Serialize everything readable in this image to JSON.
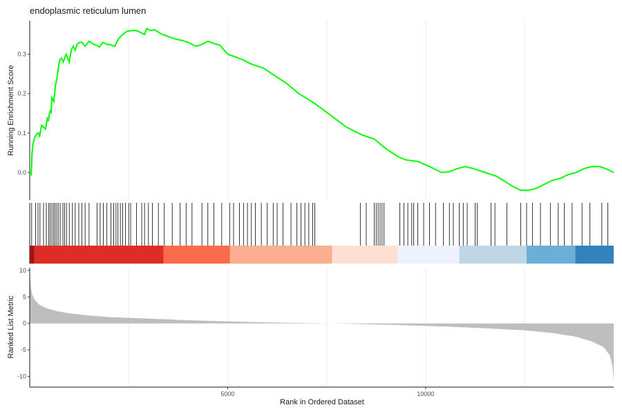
{
  "chart_data": {
    "type": "line",
    "title": "endoplasmic reticulum lumen",
    "x_label": "Rank in Ordered Dataset",
    "x_ticks": [
      5000,
      10000
    ],
    "x_range": [
      1,
      14750
    ],
    "grid": "vertical-only",
    "panels": {
      "running_enrichment": {
        "ylabel": "Running Enrichment Score",
        "y_ticks": [
          0.0,
          0.1,
          0.2,
          0.3
        ],
        "y_ticks_text": [
          "0.0",
          "0.1",
          "0.2",
          "0.3"
        ],
        "ylim": [
          -0.07,
          0.385
        ],
        "line_color": "#00ff00",
        "points": [
          [
            1,
            0.0
          ],
          [
            40,
            -0.005
          ],
          [
            60,
            0.05
          ],
          [
            80,
            0.07
          ],
          [
            130,
            0.09
          ],
          [
            200,
            0.1
          ],
          [
            230,
            0.1
          ],
          [
            250,
            0.09
          ],
          [
            300,
            0.12
          ],
          [
            400,
            0.11
          ],
          [
            450,
            0.14
          ],
          [
            470,
            0.13
          ],
          [
            500,
            0.15
          ],
          [
            530,
            0.16
          ],
          [
            540,
            0.15
          ],
          [
            560,
            0.19
          ],
          [
            610,
            0.18
          ],
          [
            650,
            0.22
          ],
          [
            690,
            0.24
          ],
          [
            730,
            0.27
          ],
          [
            760,
            0.285
          ],
          [
            800,
            0.29
          ],
          [
            850,
            0.28
          ],
          [
            880,
            0.29
          ],
          [
            920,
            0.3
          ],
          [
            960,
            0.29
          ],
          [
            1000,
            0.28
          ],
          [
            1050,
            0.31
          ],
          [
            1100,
            0.32
          ],
          [
            1150,
            0.31
          ],
          [
            1200,
            0.325
          ],
          [
            1260,
            0.33
          ],
          [
            1320,
            0.33
          ],
          [
            1400,
            0.32
          ],
          [
            1500,
            0.333
          ],
          [
            1600,
            0.326
          ],
          [
            1700,
            0.322
          ],
          [
            1760,
            0.318
          ],
          [
            1850,
            0.33
          ],
          [
            1950,
            0.325
          ],
          [
            2050,
            0.324
          ],
          [
            2150,
            0.32
          ],
          [
            2250,
            0.34
          ],
          [
            2350,
            0.35
          ],
          [
            2450,
            0.358
          ],
          [
            2600,
            0.36
          ],
          [
            2700,
            0.36
          ],
          [
            2800,
            0.355
          ],
          [
            2900,
            0.35
          ],
          [
            2960,
            0.365
          ],
          [
            3050,
            0.36
          ],
          [
            3150,
            0.362
          ],
          [
            3350,
            0.35
          ],
          [
            3500,
            0.345
          ],
          [
            3700,
            0.338
          ],
          [
            3850,
            0.335
          ],
          [
            4000,
            0.33
          ],
          [
            4200,
            0.32
          ],
          [
            4350,
            0.325
          ],
          [
            4500,
            0.333
          ],
          [
            4650,
            0.327
          ],
          [
            4800,
            0.323
          ],
          [
            5000,
            0.3
          ],
          [
            5200,
            0.293
          ],
          [
            5400,
            0.285
          ],
          [
            5600,
            0.275
          ],
          [
            5900,
            0.265
          ],
          [
            6200,
            0.245
          ],
          [
            6500,
            0.225
          ],
          [
            6800,
            0.2
          ],
          [
            7200,
            0.175
          ],
          [
            7600,
            0.145
          ],
          [
            8000,
            0.115
          ],
          [
            8400,
            0.095
          ],
          [
            8700,
            0.085
          ],
          [
            9000,
            0.06
          ],
          [
            9300,
            0.04
          ],
          [
            9500,
            0.032
          ],
          [
            9800,
            0.028
          ],
          [
            10100,
            0.015
          ],
          [
            10400,
            0.0
          ],
          [
            10600,
            0.002
          ],
          [
            10800,
            0.01
          ],
          [
            11000,
            0.015
          ],
          [
            11200,
            0.01
          ],
          [
            11500,
            0.0
          ],
          [
            11800,
            -0.01
          ],
          [
            12200,
            -0.035
          ],
          [
            12400,
            -0.045
          ],
          [
            12600,
            -0.045
          ],
          [
            12800,
            -0.04
          ],
          [
            13000,
            -0.03
          ],
          [
            13200,
            -0.02
          ],
          [
            13400,
            -0.015
          ],
          [
            13600,
            -0.005
          ],
          [
            13800,
            0.0
          ],
          [
            14000,
            0.01
          ],
          [
            14200,
            0.015
          ],
          [
            14400,
            0.015
          ],
          [
            14550,
            0.01
          ],
          [
            14750,
            0.0
          ]
        ]
      },
      "hits": {
        "positions": [
          50,
          150,
          210,
          260,
          350,
          420,
          480,
          520,
          560,
          600,
          640,
          680,
          720,
          770,
          840,
          880,
          930,
          1000,
          1080,
          1150,
          1240,
          1320,
          1400,
          1500,
          1700,
          1780,
          1860,
          1950,
          2050,
          2120,
          2180,
          2230,
          2290,
          2350,
          2420,
          2500,
          2550,
          2700,
          2830,
          2900,
          3000,
          3100,
          3250,
          3400,
          3600,
          3800,
          3950,
          4100,
          4350,
          4500,
          4650,
          4850,
          5050,
          5150,
          5300,
          5400,
          5500,
          5600,
          5700,
          5850,
          6000,
          6150,
          6250,
          6400,
          6600,
          6750,
          6850,
          6950,
          7050,
          7150,
          7200,
          8350,
          8500,
          8700,
          8750,
          8800,
          8850,
          8900,
          8950,
          9350,
          9450,
          9550,
          9650,
          9700,
          9800,
          9950,
          10100,
          10250,
          10450,
          10600,
          10700,
          10850,
          10950,
          11050,
          11250,
          11300,
          11650,
          11750,
          12050,
          12400,
          12550,
          12700,
          12900,
          13150,
          13350,
          13500,
          13700,
          13950,
          14150,
          14450,
          14600
        ],
        "color_band": [
          [
            1,
            120,
            "#a50f15"
          ],
          [
            120,
            3380,
            "#de2d26"
          ],
          [
            3380,
            5060,
            "#fb6a4a"
          ],
          [
            5060,
            7640,
            "#fcae91"
          ],
          [
            7640,
            9300,
            "#fde0d2"
          ],
          [
            9300,
            10850,
            "#eff3ff"
          ],
          [
            10850,
            12550,
            "#bdd7e7"
          ],
          [
            12550,
            13780,
            "#6baed6"
          ],
          [
            13780,
            14750,
            "#3182bd"
          ]
        ]
      },
      "ranked_metric": {
        "ylabel": "Ranked List Metric",
        "y_ticks": [
          10,
          5,
          0,
          -5,
          -10
        ],
        "y_ticks_text": [
          "10",
          "5",
          "0",
          "-5",
          "-10"
        ],
        "ylim": [
          -12,
          10.5
        ],
        "fill_color": "#bebebe",
        "points": [
          [
            1,
            10
          ],
          [
            20,
            7.5
          ],
          [
            60,
            5.5
          ],
          [
            120,
            4.5
          ],
          [
            250,
            3.5
          ],
          [
            450,
            2.8
          ],
          [
            700,
            2.3
          ],
          [
            1000,
            1.9
          ],
          [
            1500,
            1.5
          ],
          [
            2000,
            1.2
          ],
          [
            3000,
            0.9
          ],
          [
            4000,
            0.6
          ],
          [
            5000,
            0.4
          ],
          [
            6000,
            0.2
          ],
          [
            7000,
            0.05
          ],
          [
            7600,
            0.0
          ],
          [
            8500,
            -0.15
          ],
          [
            9500,
            -0.35
          ],
          [
            10500,
            -0.6
          ],
          [
            11500,
            -0.9
          ],
          [
            12500,
            -1.3
          ],
          [
            13200,
            -1.8
          ],
          [
            13800,
            -2.5
          ],
          [
            14200,
            -3.4
          ],
          [
            14500,
            -4.5
          ],
          [
            14650,
            -6.0
          ],
          [
            14720,
            -8.0
          ],
          [
            14750,
            -11.0
          ]
        ]
      }
    }
  }
}
